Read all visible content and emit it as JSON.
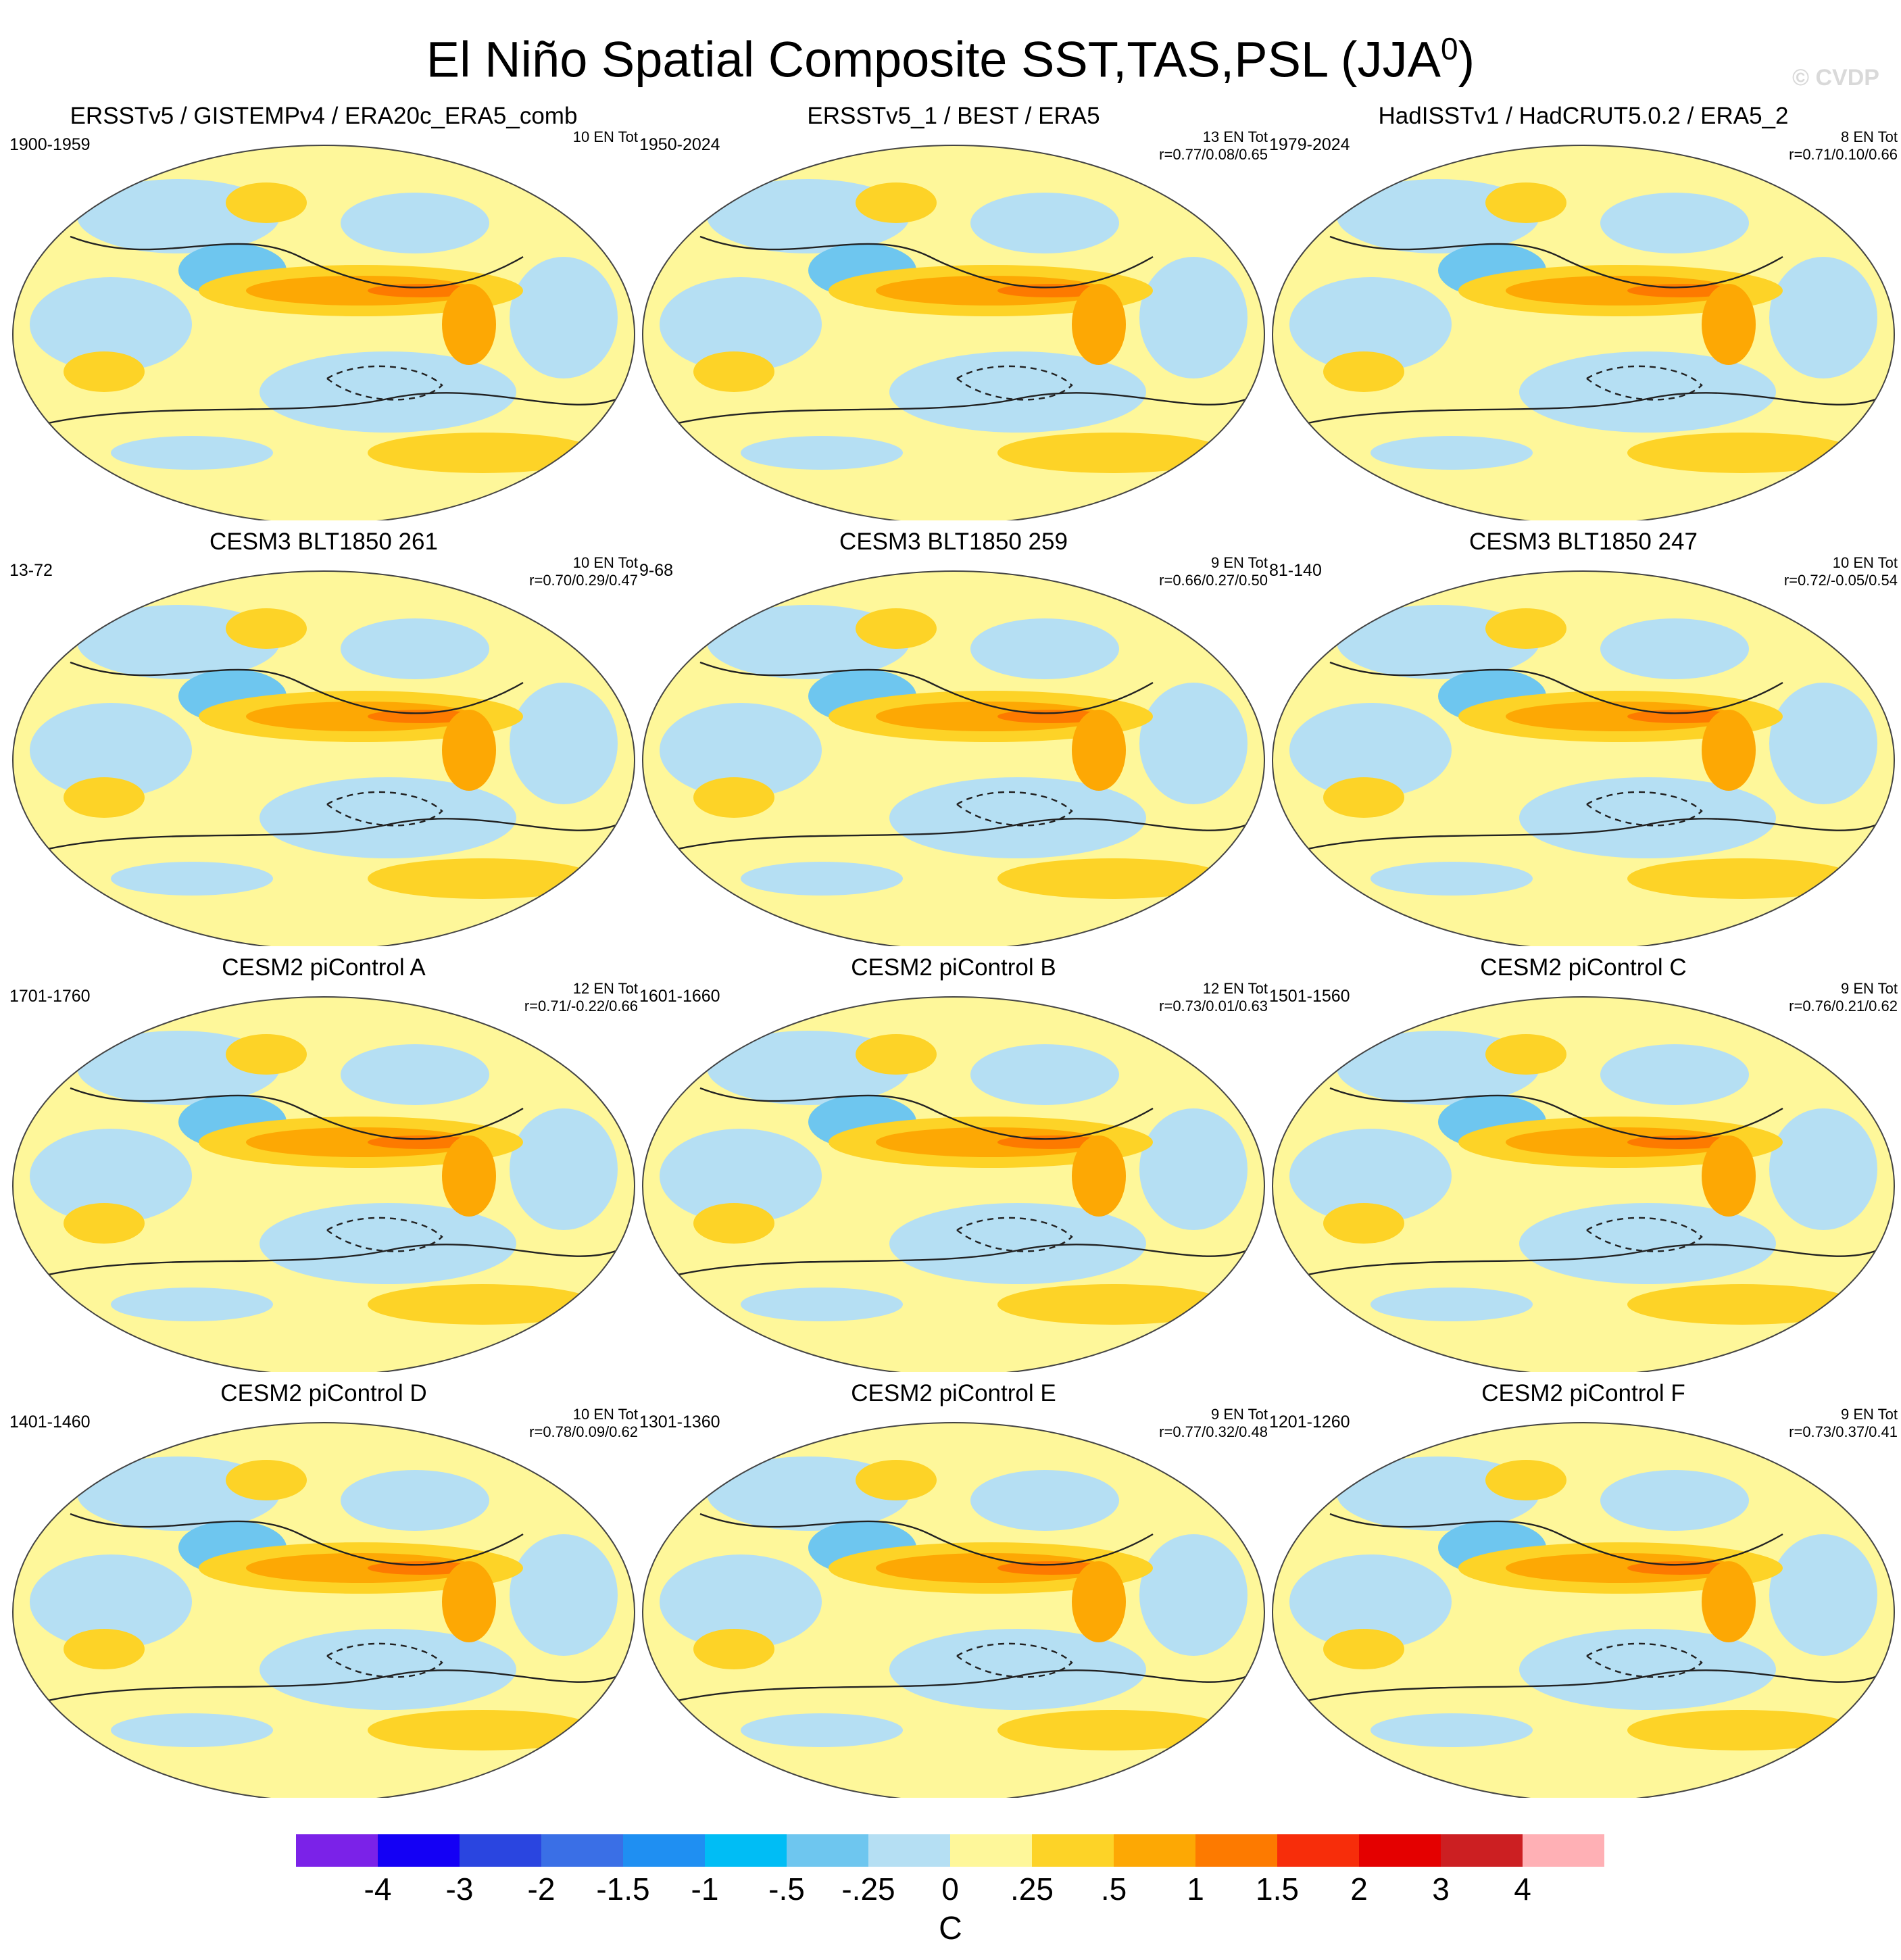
{
  "title": {
    "main": "El Niño Spatial Composite SST,TAS,PSL (JJA",
    "superscript": "0",
    "close": ")"
  },
  "watermark": "© CVDP",
  "panels": [
    {
      "title": "ERSSTv5 / GISTEMPv4 / ERA20c_ERA5_comb",
      "period": "1900-1959",
      "events": "10 EN Tot",
      "corr": ""
    },
    {
      "title": "ERSSTv5_1 / BEST / ERA5",
      "period": "1950-2024",
      "events": "13 EN Tot",
      "corr": "r=0.77/0.08/0.65"
    },
    {
      "title": "HadISSTv1 / HadCRUT5.0.2 / ERA5_2",
      "period": "1979-2024",
      "events": "8 EN Tot",
      "corr": "r=0.71/0.10/0.66"
    },
    {
      "title": "CESM3 BLT1850 261",
      "period": "13-72",
      "events": "10 EN Tot",
      "corr": "r=0.70/0.29/0.47"
    },
    {
      "title": "CESM3 BLT1850 259",
      "period": "9-68",
      "events": "9 EN Tot",
      "corr": "r=0.66/0.27/0.50"
    },
    {
      "title": "CESM3 BLT1850 247",
      "period": "81-140",
      "events": "10 EN Tot",
      "corr": "r=0.72/-0.05/0.54"
    },
    {
      "title": "CESM2 piControl A",
      "period": "1701-1760",
      "events": "12 EN Tot",
      "corr": "r=0.71/-0.22/0.66"
    },
    {
      "title": "CESM2 piControl B",
      "period": "1601-1660",
      "events": "12 EN Tot",
      "corr": "r=0.73/0.01/0.63"
    },
    {
      "title": "CESM2 piControl C",
      "period": "1501-1560",
      "events": "9 EN Tot",
      "corr": "r=0.76/0.21/0.62"
    },
    {
      "title": "CESM2 piControl D",
      "period": "1401-1460",
      "events": "10 EN Tot",
      "corr": "r=0.78/0.09/0.62"
    },
    {
      "title": "CESM2 piControl E",
      "period": "1301-1360",
      "events": "9 EN Tot",
      "corr": "r=0.77/0.32/0.48"
    },
    {
      "title": "CESM2 piControl F",
      "period": "1201-1260",
      "events": "9 EN Tot",
      "corr": "r=0.73/0.37/0.41"
    }
  ],
  "colorbar": {
    "units": "C",
    "colors": [
      "#7b22e8",
      "#1400f5",
      "#2a45e0",
      "#3a6fe6",
      "#1f8ff2",
      "#00bdf5",
      "#6ec6ef",
      "#b5dff3",
      "#fef79a",
      "#fdd327",
      "#fda804",
      "#fd7a00",
      "#f72d0a",
      "#e40000",
      "#cc1f22",
      "#ffb0b5"
    ],
    "labels": [
      "-4",
      "-3",
      "-2",
      "-1.5",
      "-1",
      "-.5",
      "-.25",
      "0",
      ".25",
      ".5",
      "1",
      "1.5",
      "2",
      "3",
      "4"
    ]
  }
}
